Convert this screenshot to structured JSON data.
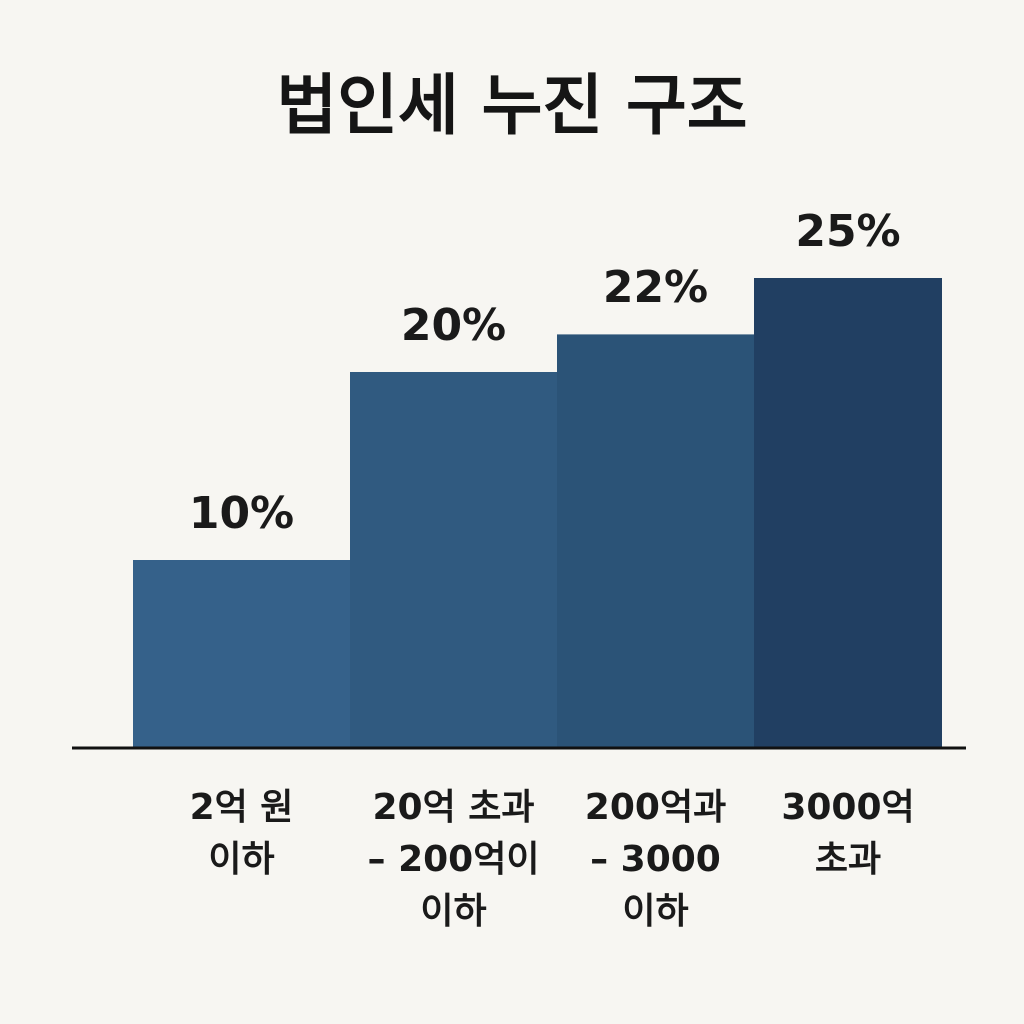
{
  "chart_data": {
    "type": "bar",
    "title": "법인세 누진 구조",
    "categories": [
      "2억 원\n이하",
      "20억 초과\n– 200억이\n이하",
      "200억과\n– 3000\n이하",
      "3000억\n초과"
    ],
    "values": [
      10,
      20,
      22,
      25
    ],
    "value_labels": [
      "10%",
      "20%",
      "22%",
      "25%"
    ],
    "colors": [
      "#35618a",
      "#305a80",
      "#2b5377",
      "#213f62"
    ]
  }
}
